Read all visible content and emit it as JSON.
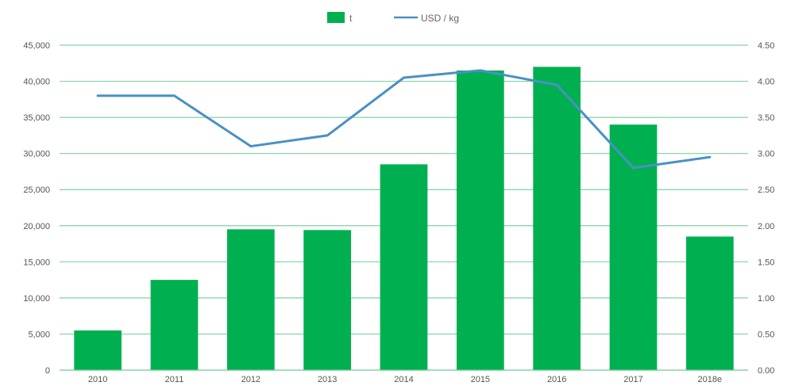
{
  "chart_data": {
    "type": "bar",
    "categories": [
      "2010",
      "2011",
      "2012",
      "2013",
      "2014",
      "2015",
      "2016",
      "2017",
      "2018e"
    ],
    "series": [
      {
        "name": "t",
        "type": "bar",
        "axis": "left",
        "color": "#00b050",
        "values": [
          5500,
          12500,
          19500,
          19400,
          28500,
          41500,
          42000,
          34000,
          18500
        ]
      },
      {
        "name": "USD / kg",
        "type": "line",
        "axis": "right",
        "color": "#4a90c4",
        "values": [
          3.8,
          3.8,
          3.1,
          3.25,
          4.05,
          4.15,
          3.95,
          2.8,
          2.95
        ]
      }
    ],
    "y_left": {
      "min": 0,
      "max": 45000,
      "step": 5000,
      "tick_labels": [
        "0",
        "5,000",
        "10,000",
        "15,000",
        "20,000",
        "25,000",
        "30,000",
        "35,000",
        "40,000",
        "45,000"
      ]
    },
    "y_right": {
      "min": 0,
      "max": 4.5,
      "step": 0.5,
      "tick_labels": [
        "0.00",
        "0.50",
        "1.00",
        "1.50",
        "2.00",
        "2.50",
        "3.00",
        "3.50",
        "4.00",
        "4.50"
      ]
    },
    "grid": "horizontal",
    "legend": "top-center"
  }
}
